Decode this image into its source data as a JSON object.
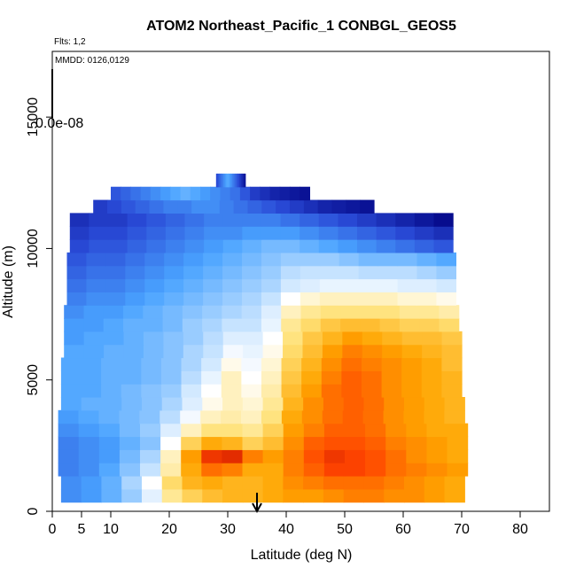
{
  "chart_data": {
    "type": "heatmap",
    "title": "ATOM2 Northeast_Pacific_1 CONBGL_GEOS5",
    "flights_note": "Flts: 1,2",
    "date_note": "MMDD: 0126,0129",
    "xlabel": "Latitude (deg N)",
    "ylabel": "Altitude (m)",
    "xlim": [
      0,
      85
    ],
    "ylim": [
      0,
      17500
    ],
    "x_ticks": [
      0,
      5,
      10,
      20,
      30,
      40,
      50,
      60,
      70,
      80
    ],
    "y_ticks": [
      0,
      5000,
      10000,
      15000
    ],
    "colorbar_label": "0.0e-08",
    "colors": [
      "#000080",
      "#2a4bd7",
      "#4aa3ff",
      "#b8dcff",
      "#ffffff",
      "#ffe27a",
      "#ffa500",
      "#ff4500",
      "#b00000"
    ],
    "rows": [
      {
        "alt": 600,
        "lat0": 1.5,
        "lat1": 70.5,
        "v": [
          0.22,
          0.24,
          0.28,
          0.34,
          0.45,
          0.6,
          0.66,
          0.7,
          0.72,
          0.72,
          0.74,
          0.76,
          0.76,
          0.78,
          0.8,
          0.8,
          0.78,
          0.78,
          0.76,
          0.74
        ]
      },
      {
        "alt": 1100,
        "lat0": 1.5,
        "lat1": 70.5,
        "v": [
          0.22,
          0.24,
          0.28,
          0.36,
          0.5,
          0.64,
          0.72,
          0.74,
          0.72,
          0.72,
          0.74,
          0.78,
          0.8,
          0.82,
          0.82,
          0.82,
          0.8,
          0.78,
          0.76,
          0.74
        ]
      },
      {
        "alt": 1600,
        "lat0": 1.0,
        "lat1": 71.0,
        "v": [
          0.2,
          0.22,
          0.26,
          0.32,
          0.4,
          0.58,
          0.74,
          0.82,
          0.8,
          0.74,
          0.74,
          0.8,
          0.84,
          0.88,
          0.88,
          0.86,
          0.82,
          0.8,
          0.78,
          0.76
        ]
      },
      {
        "alt": 2100,
        "lat0": 1.0,
        "lat1": 71.0,
        "v": [
          0.2,
          0.22,
          0.24,
          0.3,
          0.36,
          0.56,
          0.76,
          0.9,
          0.92,
          0.8,
          0.76,
          0.8,
          0.86,
          0.9,
          0.88,
          0.86,
          0.82,
          0.78,
          0.76,
          0.74
        ]
      },
      {
        "alt": 2600,
        "lat0": 1.0,
        "lat1": 71.0,
        "v": [
          0.2,
          0.22,
          0.24,
          0.28,
          0.32,
          0.5,
          0.66,
          0.74,
          0.72,
          0.66,
          0.7,
          0.78,
          0.84,
          0.86,
          0.86,
          0.84,
          0.8,
          0.78,
          0.76,
          0.74
        ]
      },
      {
        "alt": 3100,
        "lat0": 1.0,
        "lat1": 71.0,
        "v": [
          0.22,
          0.24,
          0.26,
          0.3,
          0.34,
          0.44,
          0.56,
          0.62,
          0.62,
          0.6,
          0.66,
          0.76,
          0.8,
          0.84,
          0.84,
          0.82,
          0.78,
          0.76,
          0.74,
          0.74
        ]
      },
      {
        "alt": 3600,
        "lat0": 1.0,
        "lat1": 70.5,
        "v": [
          0.24,
          0.26,
          0.28,
          0.3,
          0.32,
          0.38,
          0.48,
          0.56,
          0.58,
          0.56,
          0.62,
          0.74,
          0.78,
          0.82,
          0.84,
          0.82,
          0.78,
          0.76,
          0.74,
          0.72
        ]
      },
      {
        "alt": 4100,
        "lat0": 1.5,
        "lat1": 70.5,
        "v": [
          0.26,
          0.28,
          0.28,
          0.3,
          0.32,
          0.36,
          0.44,
          0.52,
          0.56,
          0.54,
          0.6,
          0.72,
          0.78,
          0.82,
          0.84,
          0.82,
          0.78,
          0.76,
          0.74,
          0.72
        ]
      },
      {
        "alt": 4600,
        "lat0": 1.5,
        "lat1": 70.0,
        "v": [
          0.26,
          0.26,
          0.28,
          0.3,
          0.32,
          0.34,
          0.42,
          0.5,
          0.56,
          0.52,
          0.58,
          0.7,
          0.76,
          0.82,
          0.84,
          0.82,
          0.78,
          0.76,
          0.74,
          0.72
        ]
      },
      {
        "alt": 5100,
        "lat0": 1.5,
        "lat1": 70.0,
        "v": [
          0.26,
          0.26,
          0.28,
          0.28,
          0.3,
          0.32,
          0.38,
          0.46,
          0.56,
          0.5,
          0.56,
          0.68,
          0.74,
          0.8,
          0.84,
          0.82,
          0.78,
          0.76,
          0.74,
          0.72
        ]
      },
      {
        "alt": 5600,
        "lat0": 1.5,
        "lat1": 70.0,
        "v": [
          0.26,
          0.26,
          0.28,
          0.28,
          0.3,
          0.32,
          0.36,
          0.42,
          0.52,
          0.48,
          0.54,
          0.66,
          0.72,
          0.78,
          0.82,
          0.8,
          0.78,
          0.76,
          0.74,
          0.7
        ]
      },
      {
        "alt": 6100,
        "lat0": 2.0,
        "lat1": 70.0,
        "v": [
          0.26,
          0.26,
          0.28,
          0.28,
          0.3,
          0.32,
          0.36,
          0.4,
          0.48,
          0.46,
          0.52,
          0.64,
          0.7,
          0.76,
          0.8,
          0.78,
          0.76,
          0.74,
          0.72,
          0.7
        ]
      },
      {
        "alt": 6600,
        "lat0": 2.0,
        "lat1": 70.0,
        "v": [
          0.24,
          0.26,
          0.26,
          0.28,
          0.3,
          0.32,
          0.34,
          0.38,
          0.44,
          0.44,
          0.5,
          0.62,
          0.68,
          0.72,
          0.76,
          0.74,
          0.72,
          0.7,
          0.7,
          0.68
        ]
      },
      {
        "alt": 7100,
        "lat0": 2.0,
        "lat1": 69.5,
        "v": [
          0.24,
          0.24,
          0.26,
          0.28,
          0.28,
          0.3,
          0.34,
          0.36,
          0.4,
          0.4,
          0.46,
          0.6,
          0.64,
          0.68,
          0.7,
          0.7,
          0.68,
          0.66,
          0.66,
          0.64
        ]
      },
      {
        "alt": 7600,
        "lat0": 2.0,
        "lat1": 69.5,
        "v": [
          0.22,
          0.24,
          0.24,
          0.26,
          0.28,
          0.3,
          0.32,
          0.34,
          0.36,
          0.38,
          0.44,
          0.56,
          0.6,
          0.62,
          0.62,
          0.62,
          0.62,
          0.6,
          0.6,
          0.58
        ]
      },
      {
        "alt": 8100,
        "lat0": 2.5,
        "lat1": 69.0,
        "v": [
          0.2,
          0.22,
          0.22,
          0.24,
          0.26,
          0.28,
          0.3,
          0.32,
          0.34,
          0.36,
          0.4,
          0.5,
          0.54,
          0.56,
          0.56,
          0.56,
          0.56,
          0.54,
          0.54,
          0.52
        ]
      },
      {
        "alt": 8600,
        "lat0": 2.5,
        "lat1": 69.0,
        "v": [
          0.18,
          0.2,
          0.2,
          0.22,
          0.24,
          0.26,
          0.28,
          0.3,
          0.32,
          0.34,
          0.36,
          0.42,
          0.44,
          0.46,
          0.46,
          0.46,
          0.46,
          0.44,
          0.44,
          0.42
        ]
      },
      {
        "alt": 9100,
        "lat0": 2.5,
        "lat1": 69.0,
        "v": [
          0.16,
          0.18,
          0.18,
          0.2,
          0.22,
          0.24,
          0.26,
          0.28,
          0.3,
          0.32,
          0.34,
          0.38,
          0.4,
          0.4,
          0.4,
          0.38,
          0.38,
          0.38,
          0.36,
          0.34
        ]
      },
      {
        "alt": 9600,
        "lat0": 2.5,
        "lat1": 69.0,
        "v": [
          0.14,
          0.16,
          0.16,
          0.18,
          0.2,
          0.22,
          0.24,
          0.26,
          0.28,
          0.3,
          0.32,
          0.34,
          0.34,
          0.34,
          0.32,
          0.3,
          0.3,
          0.3,
          0.28,
          0.26
        ]
      },
      {
        "alt": 10100,
        "lat0": 3.0,
        "lat1": 68.5,
        "v": [
          0.12,
          0.14,
          0.14,
          0.16,
          0.18,
          0.2,
          0.22,
          0.24,
          0.26,
          0.28,
          0.3,
          0.3,
          0.28,
          0.26,
          0.24,
          0.22,
          0.2,
          0.18,
          0.16,
          0.14
        ]
      },
      {
        "alt": 10600,
        "lat0": 3.0,
        "lat1": 68.5,
        "v": [
          0.1,
          0.12,
          0.12,
          0.14,
          0.16,
          0.18,
          0.2,
          0.22,
          0.22,
          0.24,
          0.24,
          0.24,
          0.22,
          0.2,
          0.18,
          0.16,
          0.14,
          0.12,
          0.1,
          0.08
        ]
      },
      {
        "alt": 11100,
        "lat0": 3.0,
        "lat1": 68.5,
        "v": [
          0.08,
          0.1,
          0.1,
          0.12,
          0.14,
          0.16,
          0.18,
          0.2,
          0.2,
          0.2,
          0.2,
          0.18,
          0.16,
          0.14,
          0.12,
          0.1,
          0.08,
          0.06,
          0.04,
          0.02
        ]
      },
      {
        "alt": 11600,
        "lat0": 7.0,
        "lat1": 55.0,
        "v": [
          0.1,
          0.12,
          0.14,
          0.16,
          0.18,
          0.2,
          0.2,
          0.22,
          0.22,
          0.2,
          0.18,
          0.16,
          0.14,
          0.12,
          0.1,
          0.08,
          0.06,
          0.05,
          0.04,
          0.03
        ]
      },
      {
        "alt": 12100,
        "lat0": 10.0,
        "lat1": 44.0,
        "v": [
          0.14,
          0.16,
          0.18,
          0.2,
          0.22,
          0.24,
          0.26,
          0.28,
          0.26,
          0.24,
          0.22,
          0.2,
          0.18,
          0.14,
          0.1,
          0.08,
          0.06,
          0.05,
          0.04,
          0.03
        ]
      },
      {
        "alt": 12600,
        "lat0": 28.0,
        "lat1": 33.0,
        "v": [
          0.12,
          0.14,
          0.16,
          0.18,
          0.2,
          0.22,
          0.24,
          0.26,
          0.26,
          0.24,
          0.22,
          0.2,
          0.18,
          0.16,
          0.14,
          0.12,
          0.1,
          0.08,
          0.06,
          0.04
        ]
      }
    ],
    "arrow_lat": 35
  }
}
